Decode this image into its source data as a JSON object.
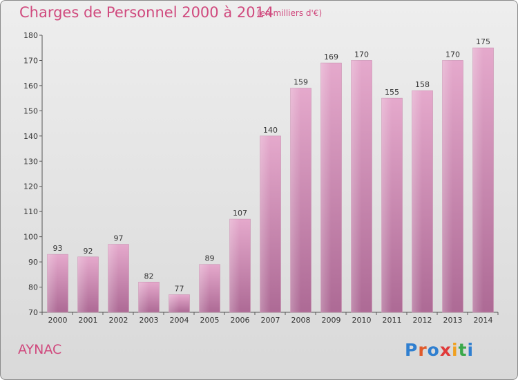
{
  "chart_data": {
    "type": "bar",
    "title": "Charges de Personnel 2000 à 2014",
    "subtitle": "(en milliers d'€)",
    "categories": [
      "2000",
      "2001",
      "2002",
      "2003",
      "2004",
      "2005",
      "2006",
      "2007",
      "2008",
      "2009",
      "2010",
      "2011",
      "2012",
      "2013",
      "2014"
    ],
    "values": [
      93,
      92,
      97,
      82,
      77,
      89,
      107,
      140,
      159,
      169,
      170,
      155,
      158,
      170,
      175
    ],
    "ylim": [
      70,
      180
    ],
    "yticks": [
      70,
      80,
      90,
      100,
      110,
      120,
      130,
      140,
      150,
      160,
      170,
      180
    ],
    "xlabel": "",
    "ylabel": "",
    "grid": false,
    "bar_color": "#d98fb8"
  },
  "commune": "AYNAC",
  "logo": {
    "letters": [
      {
        "char": "P",
        "color": "#2f7fd0"
      },
      {
        "char": "r",
        "color": "#e05a2a"
      },
      {
        "char": "o",
        "color": "#2f7fd0"
      },
      {
        "char": "x",
        "color": "#e03a3a"
      },
      {
        "char": "i",
        "color": "#f0a020"
      },
      {
        "char": "t",
        "color": "#3aa84a"
      },
      {
        "char": "i",
        "color": "#2f7fd0"
      }
    ]
  }
}
